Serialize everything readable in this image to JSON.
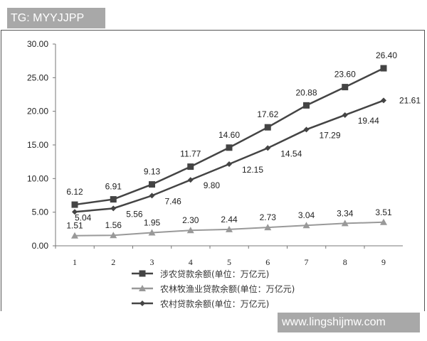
{
  "watermarks": {
    "top_left": "TG: MYYJJPP",
    "bottom_right": "www.lingshijmw.com"
  },
  "chart_data": {
    "type": "line",
    "x": [
      1,
      2,
      3,
      4,
      5,
      6,
      7,
      8,
      9
    ],
    "ylim": [
      0,
      30
    ],
    "yticks": [
      "0.00",
      "5.00",
      "10.00",
      "15.00",
      "20.00",
      "25.00",
      "30.00"
    ],
    "grid": false,
    "legend_placement": "bottom",
    "series": [
      {
        "name": "涉农贷款余额(单位：万亿元)",
        "marker": "square",
        "color": "#444444",
        "values": [
          6.12,
          6.91,
          9.13,
          11.77,
          14.6,
          17.62,
          20.88,
          23.6,
          26.4
        ],
        "labels": [
          "6.12",
          "6.91",
          "9.13",
          "11.77",
          "14.60",
          "17.62",
          "20.88",
          "23.60",
          "26.40"
        ]
      },
      {
        "name": "农林牧渔业贷款余额(单位：万亿元)",
        "marker": "triangle",
        "color": "#999999",
        "values": [
          1.51,
          1.56,
          1.95,
          2.3,
          2.44,
          2.73,
          3.04,
          3.34,
          3.51
        ],
        "labels": [
          "1.51",
          "1.56",
          "1.95",
          "2.30",
          "2.44",
          "2.73",
          "3.04",
          "3.34",
          "3.51"
        ]
      },
      {
        "name": "农村贷款余额(单位：万亿元)",
        "marker": "diamond",
        "color": "#444444",
        "values": [
          5.04,
          5.56,
          7.46,
          9.8,
          12.15,
          14.54,
          17.29,
          19.44,
          21.61
        ],
        "labels": [
          "5.04",
          "5.56",
          "7.46",
          "9.80",
          "12.15",
          "14.54",
          "17.29",
          "19.44",
          "21.61"
        ]
      }
    ]
  }
}
